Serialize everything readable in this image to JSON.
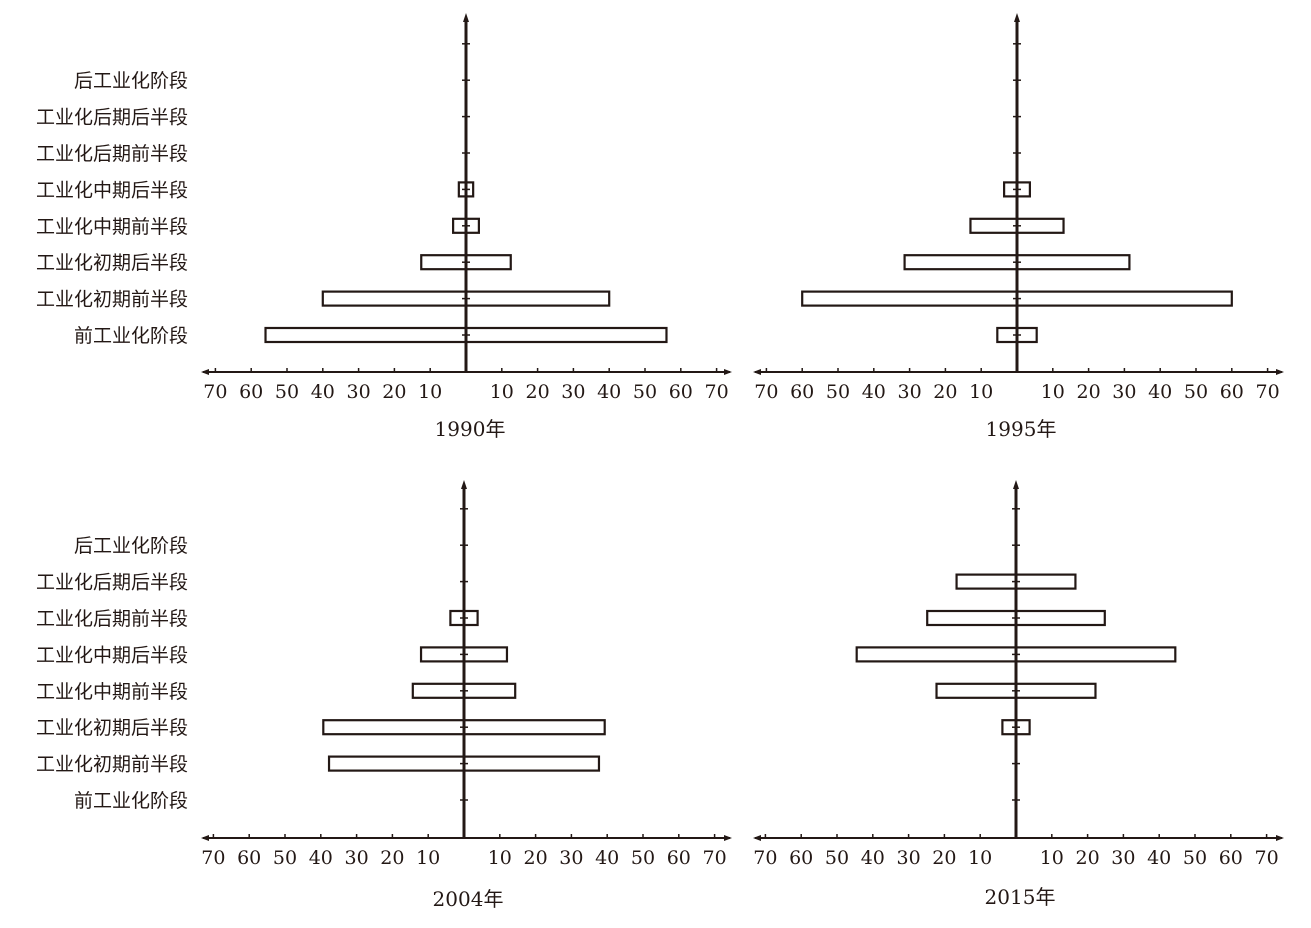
{
  "chart_data": [
    {
      "type": "bar",
      "title": "1990年",
      "show_category_labels": true,
      "categories": [
        "前工业化阶段",
        "工业化初期前半段",
        "工业化初期后半段",
        "工业化中期前半段",
        "工业化中期后半段",
        "工业化后期前半段",
        "工业化后期后半段",
        "后工业化阶段"
      ],
      "values": [
        56,
        40,
        12.5,
        3.6,
        2,
        0,
        0,
        0
      ],
      "xlim": [
        -70,
        70
      ],
      "tick_labels": [
        "70",
        "60",
        "50",
        "40",
        "30",
        "20",
        "10",
        "10",
        "20",
        "30",
        "40",
        "50",
        "60",
        "70"
      ]
    },
    {
      "type": "bar",
      "title": "1995年",
      "show_category_labels": false,
      "categories": [
        "前工业化阶段",
        "工业化初期前半段",
        "工业化初期后半段",
        "工业化中期前半段",
        "工业化中期后半段",
        "工业化后期前半段",
        "工业化后期后半段",
        "后工业化阶段"
      ],
      "values": [
        5.5,
        60,
        31.4,
        13,
        3.6,
        0,
        0,
        0
      ],
      "xlim": [
        -70,
        70
      ],
      "tick_labels": [
        "70",
        "60",
        "50",
        "40",
        "30",
        "20",
        "10",
        "10",
        "20",
        "30",
        "40",
        "50",
        "60",
        "70"
      ]
    },
    {
      "type": "bar",
      "title": "2004年",
      "show_category_labels": true,
      "categories": [
        "前工业化阶段",
        "工业化初期前半段",
        "工业化初期后半段",
        "工业化中期前半段",
        "工业化中期后半段",
        "工业化后期前半段",
        "工业化后期后半段",
        "后工业化阶段"
      ],
      "values": [
        0,
        37.7,
        39.3,
        14.3,
        12,
        3.8,
        0,
        0
      ],
      "xlim": [
        -70,
        70
      ],
      "tick_labels": [
        "70",
        "60",
        "50",
        "40",
        "30",
        "20",
        "10",
        "10",
        "20",
        "30",
        "40",
        "50",
        "60",
        "70"
      ]
    },
    {
      "type": "bar",
      "title": "2015年",
      "show_category_labels": false,
      "categories": [
        "前工业化阶段",
        "工业化初期前半段",
        "工业化初期后半段",
        "工业化中期前半段",
        "工业化中期后半段",
        "工业化后期前半段",
        "工业化后期后半段",
        "后工业化阶段"
      ],
      "values": [
        0,
        0,
        3.8,
        22.2,
        44.5,
        24.8,
        16.6,
        0
      ],
      "xlim": [
        -70,
        70
      ],
      "tick_labels": [
        "70",
        "60",
        "50",
        "40",
        "30",
        "20",
        "10",
        "10",
        "20",
        "30",
        "40",
        "50",
        "60",
        "70"
      ]
    }
  ]
}
